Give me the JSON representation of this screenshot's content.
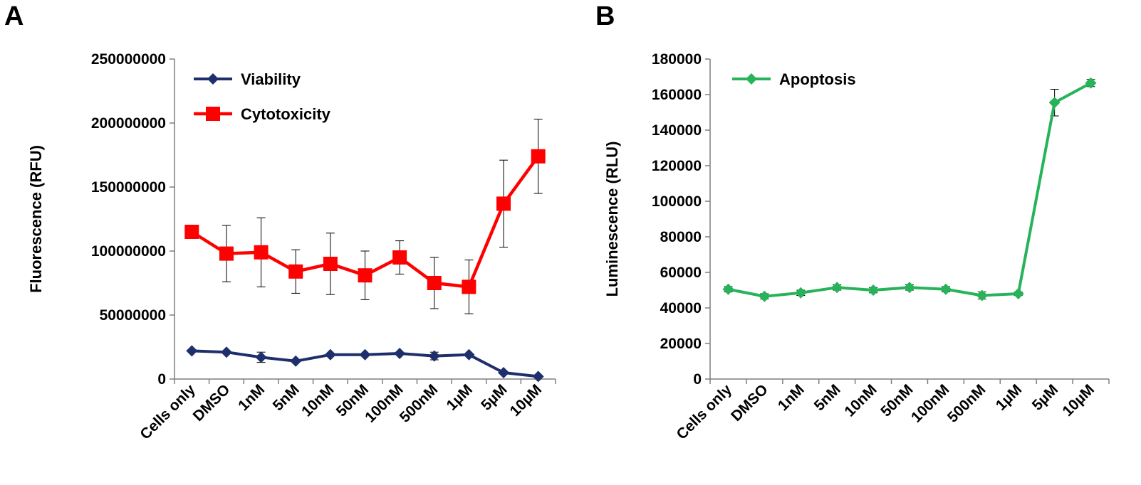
{
  "panels": [
    {
      "letter": "A"
    },
    {
      "letter": "B"
    }
  ],
  "chart_data": [
    {
      "type": "line",
      "categories": [
        "Cells only",
        "DMSO",
        "1nM",
        "5nM",
        "10nM",
        "50nM",
        "100nM",
        "500nM",
        "1µM",
        "5µM",
        "10µM"
      ],
      "ylabel": "Fluorescence (RFU)",
      "xlabel": "",
      "ylim": [
        0,
        250000000
      ],
      "yticks": [
        0,
        50000000,
        100000000,
        150000000,
        200000000,
        250000000
      ],
      "ytick_labels": [
        "0",
        "50000000",
        "100000000",
        "150000000",
        "200000000",
        "250000000"
      ],
      "grid": false,
      "legend_position": "top-left",
      "series": [
        {
          "name": "Viability",
          "color": "#1f2f6b",
          "marker": "diamond",
          "values": [
            22000000,
            21000000,
            17000000,
            14000000,
            19000000,
            19000000,
            20000000,
            18000000,
            19000000,
            5000000,
            2000000
          ],
          "errors": [
            0,
            0,
            4000000,
            0,
            0,
            0,
            0,
            3000000,
            0,
            0,
            0
          ]
        },
        {
          "name": "Cytotoxicity",
          "color": "#ff0000",
          "marker": "square",
          "values": [
            115000000,
            98000000,
            99000000,
            84000000,
            90000000,
            81000000,
            95000000,
            75000000,
            72000000,
            137000000,
            174000000
          ],
          "errors": [
            0,
            22000000,
            27000000,
            17000000,
            24000000,
            19000000,
            13000000,
            20000000,
            21000000,
            34000000,
            29000000
          ]
        }
      ]
    },
    {
      "type": "line",
      "categories": [
        "Cells only",
        "DMSO",
        "1nM",
        "5nM",
        "10nM",
        "50nM",
        "100nM",
        "500nM",
        "1µM",
        "5µM",
        "10µM"
      ],
      "ylabel": "Luminescence (RLU)",
      "xlabel": "",
      "ylim": [
        0,
        180000
      ],
      "yticks": [
        0,
        20000,
        40000,
        60000,
        80000,
        100000,
        120000,
        140000,
        160000,
        180000
      ],
      "ytick_labels": [
        "0",
        "20000",
        "40000",
        "60000",
        "80000",
        "100000",
        "120000",
        "140000",
        "160000",
        "180000"
      ],
      "grid": false,
      "legend_position": "top-left",
      "series": [
        {
          "name": "Apoptosis",
          "color": "#27b35a",
          "marker": "diamond",
          "values": [
            50500,
            46500,
            48500,
            51500,
            50000,
            51500,
            50500,
            47000,
            48000,
            155500,
            166500
          ],
          "errors": [
            1500,
            1500,
            1500,
            1500,
            1500,
            1500,
            1500,
            2000,
            1000,
            7500,
            2000
          ]
        }
      ]
    }
  ]
}
